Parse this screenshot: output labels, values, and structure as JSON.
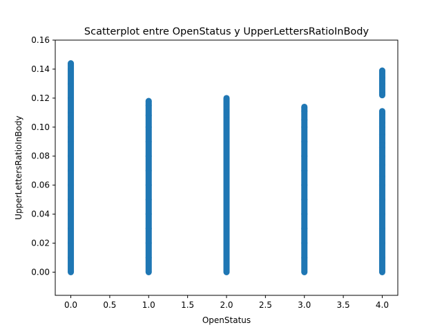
{
  "chart_data": {
    "type": "scatter",
    "title": "Scatterplot entre OpenStatus y UpperLettersRatioInBody",
    "xlabel": "OpenStatus",
    "ylabel": "UpperLettersRatioInBody",
    "xlim": [
      -0.2,
      4.2
    ],
    "ylim": [
      -0.016,
      0.16
    ],
    "xticks": [
      0.0,
      0.5,
      1.0,
      1.5,
      2.0,
      2.5,
      3.0,
      3.5,
      4.0
    ],
    "xtick_labels": [
      "0.0",
      "0.5",
      "1.0",
      "1.5",
      "2.0",
      "2.5",
      "3.0",
      "3.5",
      "4.0"
    ],
    "yticks": [
      0.0,
      0.02,
      0.04,
      0.06,
      0.08,
      0.1,
      0.12,
      0.14,
      0.16
    ],
    "ytick_labels": [
      "0.00",
      "0.02",
      "0.04",
      "0.06",
      "0.08",
      "0.10",
      "0.12",
      "0.14",
      "0.16"
    ],
    "grid": false,
    "marker_color": "#1f77b4",
    "series": [
      {
        "points": [
          {
            "x": 0,
            "y": 0.0
          },
          {
            "x": 0,
            "y": 0.01
          },
          {
            "x": 0,
            "y": 0.02
          },
          {
            "x": 0,
            "y": 0.03
          },
          {
            "x": 0,
            "y": 0.04
          },
          {
            "x": 0,
            "y": 0.05
          },
          {
            "x": 0,
            "y": 0.06
          },
          {
            "x": 0,
            "y": 0.07
          },
          {
            "x": 0,
            "y": 0.08
          },
          {
            "x": 0,
            "y": 0.09
          },
          {
            "x": 0,
            "y": 0.1
          },
          {
            "x": 0,
            "y": 0.11
          },
          {
            "x": 0,
            "y": 0.12
          },
          {
            "x": 0,
            "y": 0.13
          },
          {
            "x": 0,
            "y": 0.14
          },
          {
            "x": 0,
            "y": 0.144
          },
          {
            "x": 1,
            "y": 0.0
          },
          {
            "x": 1,
            "y": 0.01
          },
          {
            "x": 1,
            "y": 0.02
          },
          {
            "x": 1,
            "y": 0.03
          },
          {
            "x": 1,
            "y": 0.04
          },
          {
            "x": 1,
            "y": 0.05
          },
          {
            "x": 1,
            "y": 0.06
          },
          {
            "x": 1,
            "y": 0.07
          },
          {
            "x": 1,
            "y": 0.08
          },
          {
            "x": 1,
            "y": 0.09
          },
          {
            "x": 1,
            "y": 0.1
          },
          {
            "x": 1,
            "y": 0.108
          },
          {
            "x": 1,
            "y": 0.115
          },
          {
            "x": 1,
            "y": 0.118
          },
          {
            "x": 2,
            "y": 0.0
          },
          {
            "x": 2,
            "y": 0.01
          },
          {
            "x": 2,
            "y": 0.02
          },
          {
            "x": 2,
            "y": 0.03
          },
          {
            "x": 2,
            "y": 0.04
          },
          {
            "x": 2,
            "y": 0.05
          },
          {
            "x": 2,
            "y": 0.06
          },
          {
            "x": 2,
            "y": 0.07
          },
          {
            "x": 2,
            "y": 0.08
          },
          {
            "x": 2,
            "y": 0.09
          },
          {
            "x": 2,
            "y": 0.1
          },
          {
            "x": 2,
            "y": 0.107
          },
          {
            "x": 2,
            "y": 0.112
          },
          {
            "x": 2,
            "y": 0.116
          },
          {
            "x": 2,
            "y": 0.12
          },
          {
            "x": 3,
            "y": 0.0
          },
          {
            "x": 3,
            "y": 0.01
          },
          {
            "x": 3,
            "y": 0.02
          },
          {
            "x": 3,
            "y": 0.03
          },
          {
            "x": 3,
            "y": 0.04
          },
          {
            "x": 3,
            "y": 0.05
          },
          {
            "x": 3,
            "y": 0.06
          },
          {
            "x": 3,
            "y": 0.07
          },
          {
            "x": 3,
            "y": 0.08
          },
          {
            "x": 3,
            "y": 0.09
          },
          {
            "x": 3,
            "y": 0.1
          },
          {
            "x": 3,
            "y": 0.105
          },
          {
            "x": 3,
            "y": 0.111
          },
          {
            "x": 3,
            "y": 0.114
          },
          {
            "x": 4,
            "y": 0.0
          },
          {
            "x": 4,
            "y": 0.01
          },
          {
            "x": 4,
            "y": 0.02
          },
          {
            "x": 4,
            "y": 0.03
          },
          {
            "x": 4,
            "y": 0.04
          },
          {
            "x": 4,
            "y": 0.05
          },
          {
            "x": 4,
            "y": 0.06
          },
          {
            "x": 4,
            "y": 0.066
          },
          {
            "x": 4,
            "y": 0.074
          },
          {
            "x": 4,
            "y": 0.08
          },
          {
            "x": 4,
            "y": 0.086
          },
          {
            "x": 4,
            "y": 0.089
          },
          {
            "x": 4,
            "y": 0.095
          },
          {
            "x": 4,
            "y": 0.1
          },
          {
            "x": 4,
            "y": 0.103
          },
          {
            "x": 4,
            "y": 0.109
          },
          {
            "x": 4,
            "y": 0.111
          },
          {
            "x": 4,
            "y": 0.122
          },
          {
            "x": 4,
            "y": 0.124
          },
          {
            "x": 4,
            "y": 0.13
          },
          {
            "x": 4,
            "y": 0.134
          },
          {
            "x": 4,
            "y": 0.139
          }
        ]
      }
    ]
  }
}
